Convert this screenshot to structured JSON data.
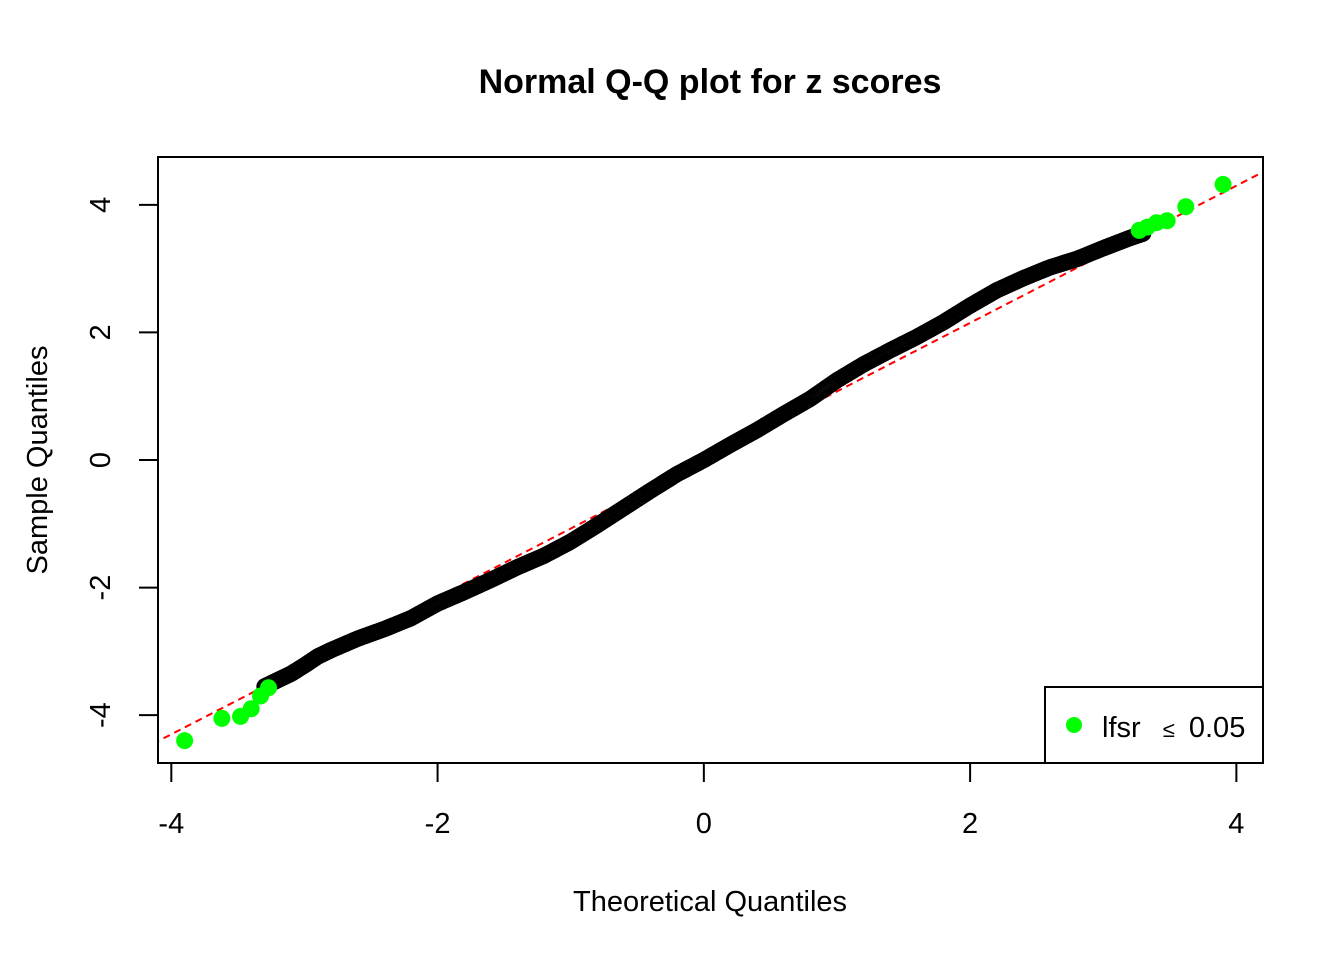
{
  "chart_data": {
    "type": "scatter",
    "title": "Normal Q-Q plot for z scores",
    "xlabel": "Theoretical Quantiles",
    "ylabel": "Sample Quantiles",
    "xlim": [
      -4.1,
      4.2
    ],
    "ylim": [
      -4.75,
      4.75
    ],
    "x_ticks": [
      -4,
      -2,
      0,
      2,
      4
    ],
    "y_ticks": [
      -4,
      -2,
      0,
      2,
      4
    ],
    "x_tick_labels": [
      "-4",
      "-2",
      "0",
      "2",
      "4"
    ],
    "y_tick_labels": [
      "-4",
      "-2",
      "0",
      "2",
      "4"
    ],
    "grid": false,
    "reference_line": {
      "style": "dashed",
      "color": "#ff0000",
      "intercept": 0.0,
      "slope": 1.075
    },
    "curve": {
      "name": "z scores",
      "marker": "open-circle",
      "color": "#000000",
      "x": [
        -3.3,
        -3.2,
        -3.1,
        -3.0,
        -2.9,
        -2.8,
        -2.6,
        -2.4,
        -2.2,
        -2.0,
        -1.8,
        -1.6,
        -1.4,
        -1.2,
        -1.0,
        -0.8,
        -0.6,
        -0.4,
        -0.2,
        0.0,
        0.2,
        0.4,
        0.6,
        0.8,
        1.0,
        1.2,
        1.4,
        1.6,
        1.8,
        2.0,
        2.2,
        2.4,
        2.6,
        2.8,
        3.0,
        3.1,
        3.2,
        3.3
      ],
      "y": [
        -3.55,
        -3.45,
        -3.35,
        -3.22,
        -3.08,
        -2.98,
        -2.8,
        -2.65,
        -2.48,
        -2.25,
        -2.07,
        -1.88,
        -1.68,
        -1.5,
        -1.28,
        -1.02,
        -0.75,
        -0.48,
        -0.22,
        0.0,
        0.24,
        0.47,
        0.72,
        0.96,
        1.25,
        1.5,
        1.72,
        1.93,
        2.16,
        2.42,
        2.66,
        2.85,
        3.02,
        3.15,
        3.32,
        3.4,
        3.48,
        3.55
      ]
    },
    "highlight": {
      "name": "lfsr ≤ 0.05",
      "marker": "filled-circle",
      "color": "#00ff00",
      "x": [
        -3.9,
        -3.62,
        -3.48,
        -3.4,
        -3.33,
        -3.27,
        3.27,
        3.33,
        3.4,
        3.48,
        3.62,
        3.9
      ],
      "y": [
        -4.4,
        -4.05,
        -4.02,
        -3.9,
        -3.7,
        -3.57,
        3.6,
        3.65,
        3.72,
        3.75,
        3.97,
        4.32
      ]
    },
    "legend": {
      "placement": "bottom-right",
      "label_prefix": "lfsr",
      "label_symbol": "≤",
      "label_value": "0.05",
      "marker_color": "#00ff00"
    }
  }
}
